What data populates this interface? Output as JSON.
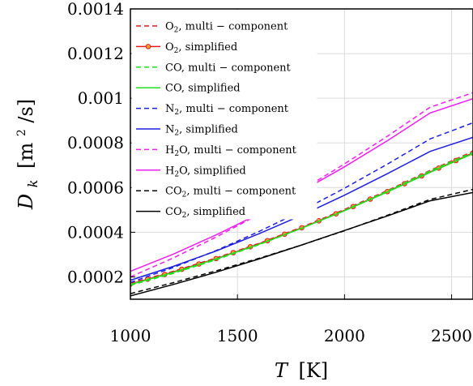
{
  "chart_data": {
    "type": "line",
    "title": "",
    "xlabel": {
      "var": "T",
      "unit": "[K]"
    },
    "ylabel": {
      "var": "D",
      "sub": "k",
      "unit_pre": "[m",
      "unit_sup": "2",
      "unit_post": "/s]"
    },
    "xlim": [
      1000,
      2600
    ],
    "ylim": [
      0.0001,
      0.0014
    ],
    "grid": true,
    "legend_position": "top-left",
    "x_ticks": [
      1000,
      1500,
      2000,
      2500
    ],
    "x_tick_labels": [
      "1000",
      "1500",
      "2000",
      "2500"
    ],
    "y_ticks": [
      0.0002,
      0.0004,
      0.0006,
      0.0008,
      0.001,
      0.0012,
      0.0014
    ],
    "y_tick_labels": [
      "0.0002",
      "0.0004",
      "0.0006",
      "0.0008",
      "0.001",
      "0.0012",
      "0.0014"
    ],
    "x": [
      1000,
      1200,
      1400,
      1600,
      1800,
      2000,
      2200,
      2400,
      2600
    ],
    "series": [
      {
        "name": "O2, multi-component",
        "label": {
          "sp": "O",
          "n": "2",
          "rest": ", multi − component"
        },
        "color": "#e41a1c",
        "dash": "dashed",
        "marker": false,
        "values": [
          0.000172,
          0.000225,
          0.000285,
          0.00035,
          0.000423,
          0.000502,
          0.000587,
          0.000677,
          0.000762
        ]
      },
      {
        "name": "O2, simplified",
        "label": {
          "sp": "O",
          "n": "2",
          "rest": ", simplified"
        },
        "color": "#e41a1c",
        "dash": "solid",
        "marker": true,
        "values": [
          0.000168,
          0.000222,
          0.000282,
          0.000348,
          0.00042,
          0.000498,
          0.000582,
          0.00067,
          0.000755
        ]
      },
      {
        "name": "CO, multi-component",
        "label": {
          "sp": "CO",
          "n": "",
          "rest": ", multi − component"
        },
        "color": "#1fe01f",
        "dash": "dashed",
        "marker": false,
        "values": [
          0.000162,
          0.000216,
          0.000277,
          0.000344,
          0.000418,
          0.000498,
          0.000584,
          0.000675,
          0.000758
        ]
      },
      {
        "name": "CO, simplified",
        "label": {
          "sp": "CO",
          "n": "",
          "rest": ", simplified"
        },
        "color": "#1fe01f",
        "dash": "solid",
        "marker": false,
        "values": [
          0.000166,
          0.00022,
          0.00028,
          0.000346,
          0.000418,
          0.000496,
          0.00058,
          0.000668,
          0.000752
        ]
      },
      {
        "name": "N2, multi-component",
        "label": {
          "sp": "N",
          "n": "2",
          "rest": ", multi − component"
        },
        "color": "#1f1fe0",
        "dash": "dashed",
        "marker": false,
        "values": [
          0.000175,
          0.000242,
          0.000318,
          0.000403,
          0.000496,
          0.000597,
          0.000705,
          0.000818,
          0.00089
        ]
      },
      {
        "name": "N2, simplified",
        "label": {
          "sp": "N",
          "n": "2",
          "rest": ", simplified"
        },
        "color": "#1f1fe0",
        "dash": "solid",
        "marker": false,
        "values": [
          0.000185,
          0.000247,
          0.000316,
          0.000393,
          0.000476,
          0.000566,
          0.000662,
          0.000762,
          0.000825
        ]
      },
      {
        "name": "H2O, multi-component",
        "label": {
          "sp": "H",
          "n": "2",
          "rest": "O, multi − component"
        },
        "color": "#ee1fee",
        "dash": "dashed",
        "marker": false,
        "values": [
          0.0002,
          0.000285,
          0.000378,
          0.00048,
          0.000589,
          0.000706,
          0.00083,
          0.00096,
          0.001025
        ]
      },
      {
        "name": "H2O, simplified",
        "label": {
          "sp": "H",
          "n": "2",
          "rest": "O, simplified"
        },
        "color": "#ee1fee",
        "dash": "solid",
        "marker": false,
        "values": [
          0.000225,
          0.000302,
          0.000388,
          0.000482,
          0.000584,
          0.000693,
          0.00081,
          0.000934,
          0.000998
        ]
      },
      {
        "name": "CO2, multi-component",
        "label": {
          "sp": "CO",
          "n": "2",
          "rest": ", multi − component"
        },
        "color": "#000000",
        "dash": "dashed",
        "marker": false,
        "values": [
          0.000125,
          0.000174,
          0.000227,
          0.000283,
          0.000343,
          0.000407,
          0.000476,
          0.000547,
          0.000592
        ]
      },
      {
        "name": "CO2, simplified",
        "label": {
          "sp": "CO",
          "n": "2",
          "rest": ", simplified"
        },
        "color": "#000000",
        "dash": "solid",
        "marker": false,
        "values": [
          0.000115,
          0.000166,
          0.000221,
          0.00028,
          0.000343,
          0.000408,
          0.000473,
          0.000541,
          0.000578
        ]
      }
    ]
  }
}
